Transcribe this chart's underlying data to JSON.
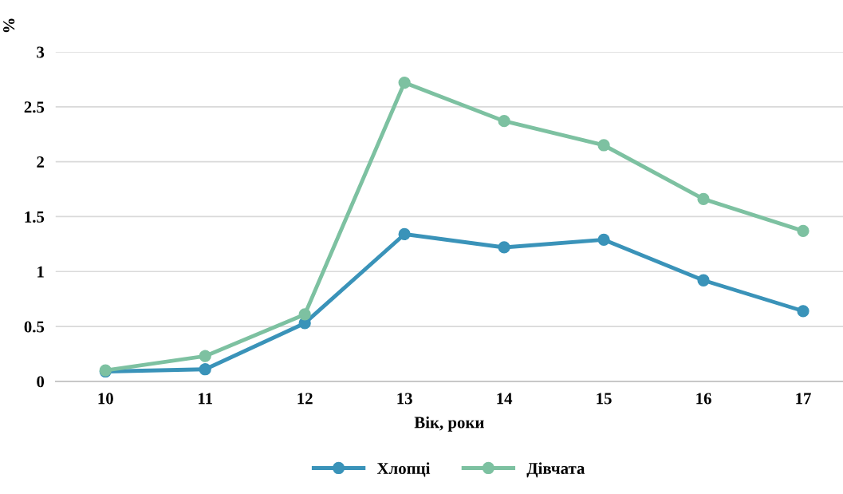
{
  "chart_data": {
    "type": "line",
    "xlabel": "Вік, роки",
    "ylabel": "%",
    "categories": [
      "10",
      "11",
      "12",
      "13",
      "14",
      "15",
      "16",
      "17"
    ],
    "series": [
      {
        "name": "Хлопці",
        "color": "#3a93b9",
        "values": [
          0.09,
          0.11,
          0.53,
          1.34,
          1.22,
          1.29,
          0.92,
          0.64
        ]
      },
      {
        "name": "Дівчата",
        "color": "#7dc1a1",
        "values": [
          0.1,
          0.23,
          0.61,
          2.72,
          2.37,
          2.15,
          1.66,
          1.37
        ]
      }
    ],
    "ylim": [
      0,
      3
    ],
    "yticks": [
      0,
      0.5,
      1,
      1.5,
      2,
      2.5,
      3
    ],
    "grid": "y",
    "legend": "bottom",
    "marker": "circle",
    "line_style": "solid"
  }
}
